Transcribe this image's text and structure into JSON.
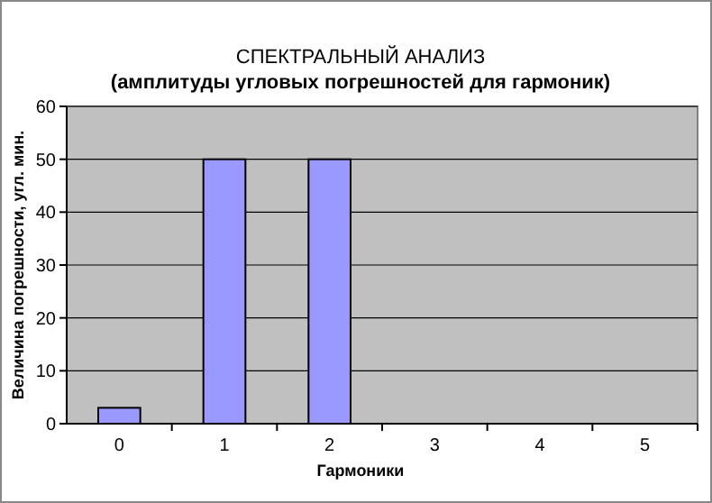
{
  "chart_data": {
    "type": "bar",
    "title": "СПЕКТРАЛЬНЫЙ АНАЛИЗ",
    "subtitle": "(амплитуды угловых погрешностей для гармоник)",
    "xlabel": "Гармоники",
    "ylabel": "Величина погрешности, угл. мин.",
    "categories": [
      "0",
      "1",
      "2",
      "3",
      "4",
      "5"
    ],
    "values": [
      3,
      50,
      50,
      0,
      0,
      0
    ],
    "color": "#9999ff",
    "ylim": [
      0,
      60
    ],
    "yticks": [
      0,
      10,
      20,
      30,
      40,
      50,
      60
    ],
    "grid": "y"
  }
}
